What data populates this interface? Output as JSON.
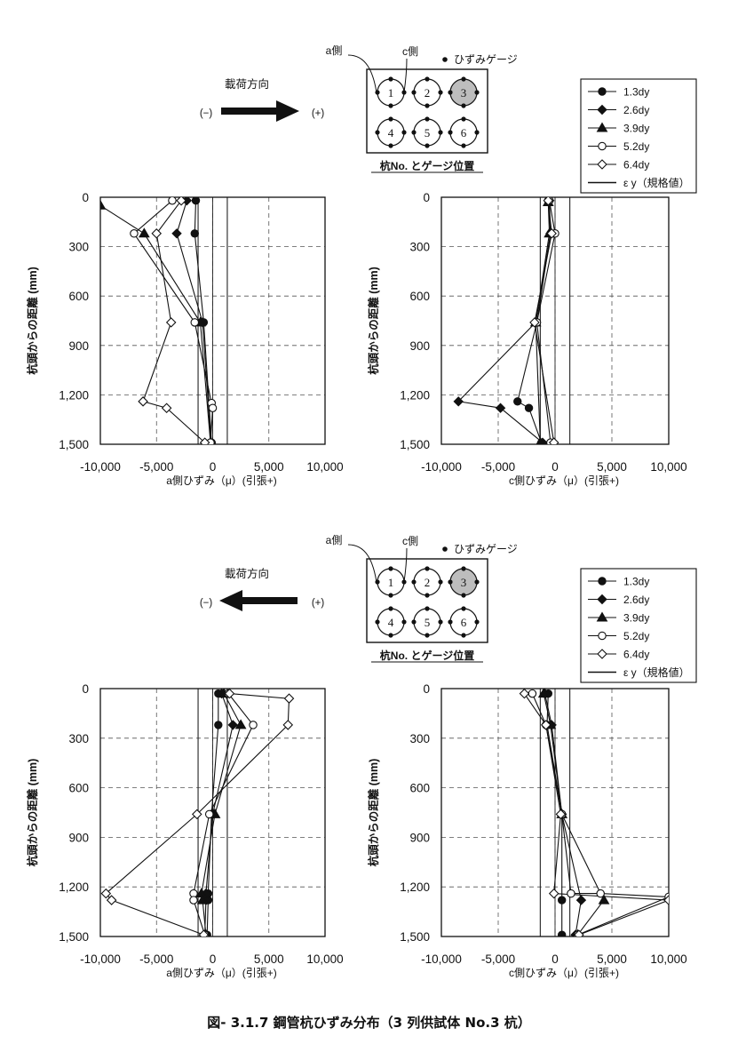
{
  "caption": "図- 3.1.7  鋼管杭ひずみ分布（3 列供試体  No.3 杭）",
  "common": {
    "load_direction_label": "載荷方向",
    "minus_label": "(−)",
    "plus_label": "(+)",
    "a_side_label": "a側",
    "c_side_label": "c側",
    "gauge_legend_label": "ひずみゲージ",
    "pile_position_title": "杭No. とゲージ位置",
    "pile_numbers": [
      "1",
      "2",
      "3",
      "4",
      "5",
      "6"
    ],
    "highlighted_pile": "3",
    "ylabel": "杭頭からの距離 (mm)",
    "xlabel_a": "a側ひずみ（μ）(引張+)",
    "xlabel_c": "c側ひずみ（μ）(引張+)",
    "x_tick_labels": [
      "-10,000",
      "-5,000",
      "0",
      "5,000",
      "10,000"
    ],
    "y_tick_labels": [
      "0",
      "300",
      "600",
      "900",
      "1,200",
      "1,500"
    ],
    "legend": [
      {
        "label": "1.3dy",
        "marker": "filled-circle"
      },
      {
        "label": "2.6dy",
        "marker": "filled-diamond"
      },
      {
        "label": "3.9dy",
        "marker": "filled-triangle"
      },
      {
        "label": "5.2dy",
        "marker": "open-circle"
      },
      {
        "label": "6.4dy",
        "marker": "open-diamond"
      },
      {
        "label": "ε y（規格値）",
        "marker": "line"
      }
    ]
  },
  "panels": [
    {
      "id": "top",
      "arrow": "right"
    },
    {
      "id": "bottom",
      "arrow": "left"
    }
  ],
  "chart_data": [
    {
      "type": "line",
      "panel": "top",
      "side": "a",
      "xlabel": "a側ひずみ（μ）(引張+)",
      "ylabel": "杭頭からの距離 (mm)",
      "xlim": [
        -10000,
        10000
      ],
      "ylim": [
        1500,
        0
      ],
      "grid": true,
      "eps_y": [
        -1300,
        1300
      ],
      "series": [
        {
          "name": "1.3dy",
          "points": [
            [
              -1500,
              20
            ],
            [
              -1600,
              220
            ],
            [
              -800,
              760
            ],
            [
              -100,
              1490
            ]
          ]
        },
        {
          "name": "2.6dy",
          "points": [
            [
              -2300,
              20
            ],
            [
              -3200,
              220
            ],
            [
              -900,
              760
            ],
            [
              -150,
              1490
            ]
          ]
        },
        {
          "name": "3.9dy",
          "points": [
            [
              -10000,
              50
            ],
            [
              -6100,
              220
            ],
            [
              -1100,
              760
            ],
            [
              -200,
              1490
            ]
          ]
        },
        {
          "name": "5.2dy",
          "points": [
            [
              -3600,
              20
            ],
            [
              -7000,
              220
            ],
            [
              -1600,
              760
            ],
            [
              -100,
              1250
            ],
            [
              0,
              1280
            ],
            [
              -200,
              1490
            ]
          ]
        },
        {
          "name": "6.4dy",
          "points": [
            [
              -2800,
              20
            ],
            [
              -5000,
              220
            ],
            [
              -3700,
              760
            ],
            [
              -6200,
              1240
            ],
            [
              -4100,
              1280
            ],
            [
              -700,
              1490
            ]
          ]
        }
      ]
    },
    {
      "type": "line",
      "panel": "top",
      "side": "c",
      "xlabel": "c側ひずみ（μ）(引張+)",
      "ylabel": "杭頭からの距離 (mm)",
      "xlim": [
        -10000,
        10000
      ],
      "ylim": [
        1500,
        0
      ],
      "grid": true,
      "eps_y": [
        -1300,
        1300
      ],
      "series": [
        {
          "name": "1.3dy",
          "points": [
            [
              -600,
              20
            ],
            [
              -400,
              220
            ],
            [
              -1600,
              760
            ],
            [
              -3300,
              1240
            ],
            [
              -2300,
              1280
            ],
            [
              -1200,
              1490
            ]
          ]
        },
        {
          "name": "2.6dy",
          "points": [
            [
              -500,
              20
            ],
            [
              -400,
              220
            ],
            [
              -1700,
              760
            ],
            [
              -8500,
              1240
            ],
            [
              -4800,
              1280
            ],
            [
              -1100,
              1490
            ]
          ]
        },
        {
          "name": "3.9dy",
          "points": [
            [
              -600,
              30
            ],
            [
              -500,
              220
            ],
            [
              -1700,
              760
            ],
            [
              -1300,
              1490
            ]
          ]
        },
        {
          "name": "5.2dy",
          "points": [
            [
              -500,
              20
            ],
            [
              0,
              220
            ],
            [
              -1600,
              760
            ],
            [
              -400,
              1490
            ]
          ]
        },
        {
          "name": "6.4dy",
          "points": [
            [
              -600,
              20
            ],
            [
              -300,
              220
            ],
            [
              -1800,
              760
            ],
            [
              -100,
              1490
            ]
          ]
        }
      ]
    },
    {
      "type": "line",
      "panel": "bottom",
      "side": "a",
      "xlabel": "a側ひずみ（μ）(引張+)",
      "ylabel": "杭頭からの距離 (mm)",
      "xlim": [
        -10000,
        10000
      ],
      "ylim": [
        1500,
        0
      ],
      "grid": true,
      "eps_y": [
        -1300,
        1300
      ],
      "series": [
        {
          "name": "1.3dy",
          "points": [
            [
              500,
              30
            ],
            [
              500,
              220
            ],
            [
              -100,
              760
            ],
            [
              -400,
              1240
            ],
            [
              -400,
              1280
            ],
            [
              -500,
              1490
            ]
          ]
        },
        {
          "name": "2.6dy",
          "points": [
            [
              800,
              30
            ],
            [
              1800,
              220
            ],
            [
              0,
              760
            ],
            [
              -600,
              1240
            ],
            [
              -600,
              1280
            ],
            [
              -700,
              1490
            ]
          ]
        },
        {
          "name": "3.9dy",
          "points": [
            [
              1000,
              30
            ],
            [
              2500,
              220
            ],
            [
              200,
              760
            ],
            [
              -1000,
              1240
            ],
            [
              -900,
              1280
            ],
            [
              -600,
              1490
            ]
          ]
        },
        {
          "name": "5.2dy",
          "points": [
            [
              1400,
              30
            ],
            [
              3600,
              220
            ],
            [
              -300,
              760
            ],
            [
              -1700,
              1240
            ],
            [
              -1700,
              1280
            ],
            [
              -700,
              1490
            ]
          ]
        },
        {
          "name": "6.4dy",
          "points": [
            [
              1500,
              30
            ],
            [
              6800,
              60
            ],
            [
              6700,
              220
            ],
            [
              -1400,
              760
            ],
            [
              -9500,
              1240
            ],
            [
              -9000,
              1280
            ],
            [
              -800,
              1490
            ]
          ]
        }
      ]
    },
    {
      "type": "line",
      "panel": "bottom",
      "side": "c",
      "xlabel": "c側ひずみ（μ）(引張+)",
      "ylabel": "杭頭からの距離 (mm)",
      "xlim": [
        -10000,
        10000
      ],
      "ylim": [
        1500,
        0
      ],
      "grid": true,
      "eps_y": [
        -1300,
        1300
      ],
      "series": [
        {
          "name": "1.3dy",
          "points": [
            [
              -600,
              30
            ],
            [
              -700,
              220
            ],
            [
              600,
              760
            ],
            [
              600,
              1280
            ],
            [
              600,
              1490
            ]
          ]
        },
        {
          "name": "2.6dy",
          "points": [
            [
              -900,
              30
            ],
            [
              -300,
              220
            ],
            [
              600,
              760
            ],
            [
              2300,
              1280
            ],
            [
              1800,
              1490
            ]
          ]
        },
        {
          "name": "3.9dy",
          "points": [
            [
              -1000,
              30
            ],
            [
              -400,
              220
            ],
            [
              600,
              760
            ],
            [
              4300,
              1280
            ],
            [
              2000,
              1490
            ]
          ]
        },
        {
          "name": "5.2dy",
          "points": [
            [
              -2000,
              30
            ],
            [
              -800,
              220
            ],
            [
              600,
              760
            ],
            [
              1400,
              1240
            ],
            [
              4000,
              1240
            ],
            [
              10000,
              1260
            ],
            [
              2000,
              1490
            ]
          ]
        },
        {
          "name": "6.4dy",
          "points": [
            [
              -2700,
              30
            ],
            [
              -800,
              220
            ],
            [
              500,
              760
            ],
            [
              -100,
              1240
            ],
            [
              10000,
              1280
            ],
            [
              2100,
              1490
            ]
          ]
        }
      ]
    }
  ]
}
